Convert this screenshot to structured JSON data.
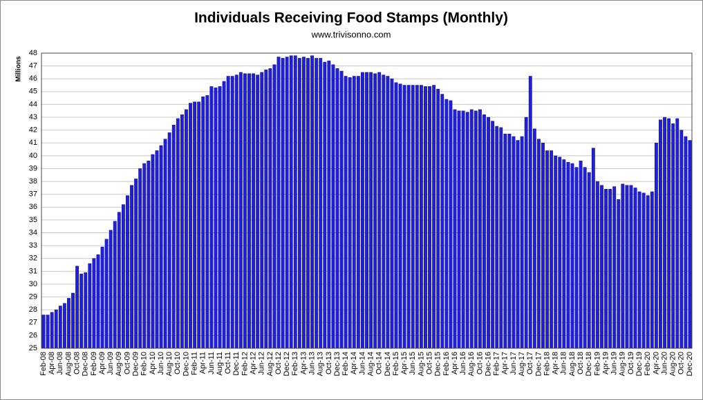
{
  "chart_data": {
    "type": "bar",
    "title": "Individuals Receiving Food Stamps (Monthly)",
    "subtitle": "www.trivisonno.com",
    "y_label": "Millions",
    "color": "#1f1fdc",
    "grid": true,
    "ylim": [
      25,
      48
    ],
    "yticks": [
      25,
      26,
      27,
      28,
      29,
      30,
      31,
      32,
      33,
      34,
      35,
      36,
      37,
      38,
      39,
      40,
      41,
      42,
      43,
      44,
      45,
      46,
      47,
      48
    ],
    "categories": [
      "Feb-08",
      null,
      "Apr-08",
      null,
      "Jun-08",
      null,
      "Aug-08",
      null,
      "Oct-08",
      null,
      "Dec-08",
      null,
      "Feb-09",
      null,
      "Apr-09",
      null,
      "Jun-09",
      null,
      "Aug-09",
      null,
      "Oct-09",
      null,
      "Dec-09",
      null,
      "Feb-10",
      null,
      "Apr-10",
      null,
      "Jun-10",
      null,
      "Aug-10",
      null,
      "Oct-10",
      null,
      "Dec-10",
      null,
      "Feb-11",
      null,
      "Apr-11",
      null,
      "Jun-11",
      null,
      "Aug-11",
      null,
      "Oct-11",
      null,
      "Dec-11",
      null,
      "Feb-12",
      null,
      "Apr-12",
      null,
      "Jun-12",
      null,
      "Aug-12",
      null,
      "Oct-12",
      null,
      "Dec-12",
      null,
      "Feb-13",
      null,
      "Apr-13",
      null,
      "Jun-13",
      null,
      "Aug-13",
      null,
      "Oct-13",
      null,
      "Dec-13",
      null,
      "Feb-14",
      null,
      "Apr-14",
      null,
      "Jun-14",
      null,
      "Aug-14",
      null,
      "Oct-14",
      null,
      "Dec-14",
      null,
      "Feb-15",
      null,
      "Apr-15",
      null,
      "Jun-15",
      null,
      "Aug-15",
      null,
      "Oct-15",
      null,
      "Dec-15",
      null,
      "Feb-16",
      null,
      "Apr-16",
      null,
      "Jun-16",
      null,
      "Aug-16",
      null,
      "Oct-16",
      null,
      "Dec-16",
      null,
      "Feb-17",
      null,
      "Apr-17",
      null,
      "Jun-17",
      null,
      "Aug-17",
      null,
      "Oct-17",
      null,
      "Dec-17",
      null,
      "Feb-18",
      null,
      "Apr-18",
      null,
      "Jun-18",
      null,
      "Aug-18",
      null,
      "Oct-18",
      null,
      "Dec-18",
      null,
      "Feb-19",
      null,
      "Apr-19",
      null,
      "Jun-19",
      null,
      "Aug-19",
      null,
      "Oct-19",
      null,
      "Dec-19",
      null,
      "Feb-20",
      null,
      "Apr-20",
      null,
      "Jun-20",
      null,
      "Aug-20",
      null,
      "Oct-20",
      null,
      "Dec-20"
    ],
    "values": [
      27.6,
      27.6,
      27.8,
      28.0,
      28.3,
      28.5,
      28.9,
      29.3,
      31.4,
      30.8,
      30.9,
      31.6,
      32.0,
      32.3,
      32.9,
      33.5,
      34.2,
      34.9,
      35.6,
      36.2,
      36.9,
      37.7,
      38.2,
      39.0,
      39.4,
      39.6,
      40.1,
      40.4,
      40.8,
      41.3,
      41.8,
      42.4,
      42.9,
      43.2,
      43.6,
      44.1,
      44.2,
      44.2,
      44.6,
      44.7,
      45.4,
      45.3,
      45.4,
      45.8,
      46.2,
      46.2,
      46.3,
      46.5,
      46.4,
      46.4,
      46.4,
      46.3,
      46.5,
      46.7,
      46.8,
      47.1,
      47.7,
      47.6,
      47.7,
      47.8,
      47.8,
      47.6,
      47.7,
      47.6,
      47.8,
      47.6,
      47.6,
      47.3,
      47.4,
      47.1,
      46.8,
      46.6,
      46.2,
      46.1,
      46.2,
      46.2,
      46.5,
      46.5,
      46.5,
      46.4,
      46.5,
      46.3,
      46.2,
      46.0,
      45.7,
      45.6,
      45.5,
      45.5,
      45.5,
      45.5,
      45.5,
      45.4,
      45.4,
      45.5,
      45.2,
      44.8,
      44.4,
      44.3,
      43.6,
      43.5,
      43.5,
      43.4,
      43.6,
      43.5,
      43.6,
      43.2,
      43.0,
      42.7,
      42.3,
      42.2,
      41.7,
      41.7,
      41.5,
      41.2,
      41.5,
      43.0,
      46.2,
      42.1,
      41.3,
      41.0,
      40.4,
      40.4,
      40.0,
      39.9,
      39.7,
      39.5,
      39.4,
      39.1,
      39.6,
      39.1,
      38.7,
      40.6,
      38.0,
      37.7,
      37.4,
      37.4,
      37.6,
      36.6,
      37.8,
      37.7,
      37.7,
      37.5,
      37.2,
      37.1,
      36.9,
      37.2,
      41.0,
      42.8,
      43.0,
      42.9,
      42.5,
      42.9,
      42.0,
      41.5,
      41.2
    ]
  }
}
